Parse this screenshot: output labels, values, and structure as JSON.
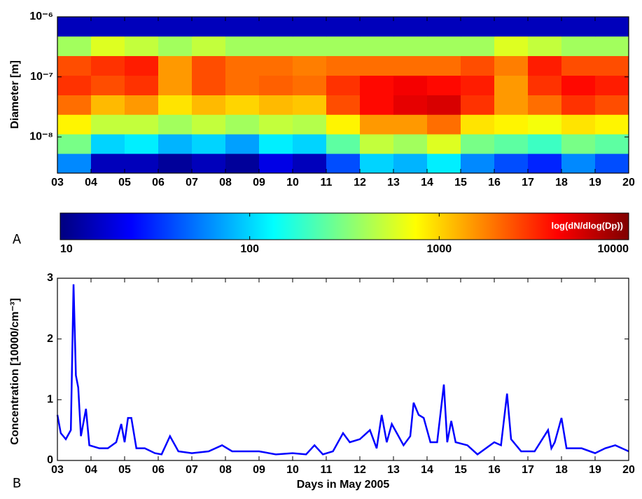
{
  "chart_data": [
    {
      "type": "heatmap",
      "panel": "A",
      "ylabel": "Diameter [m]",
      "log_y": true,
      "xlim": [
        3,
        20
      ],
      "ylim": [
        2.5e-09,
        1e-06
      ],
      "xticks": [
        {
          "value": 3,
          "label": "03"
        },
        {
          "value": 4,
          "label": "04"
        },
        {
          "value": 5,
          "label": "05"
        },
        {
          "value": 6,
          "label": "06"
        },
        {
          "value": 7,
          "label": "07"
        },
        {
          "value": 8,
          "label": "08"
        },
        {
          "value": 9,
          "label": "09"
        },
        {
          "value": 10,
          "label": "10"
        },
        {
          "value": 11,
          "label": "11"
        },
        {
          "value": 12,
          "label": "12"
        },
        {
          "value": 13,
          "label": "13"
        },
        {
          "value": 14,
          "label": "14"
        },
        {
          "value": 15,
          "label": "15"
        },
        {
          "value": 16,
          "label": "16"
        },
        {
          "value": 17,
          "label": "17"
        },
        {
          "value": 18,
          "label": "18"
        },
        {
          "value": 19,
          "label": "19"
        },
        {
          "value": 20,
          "label": "20"
        }
      ],
      "yticks": [
        {
          "value": 1e-08,
          "label": "10⁻⁸"
        },
        {
          "value": 1e-07,
          "label": "10⁻⁷"
        },
        {
          "value": 1e-06,
          "label": "10⁻⁶"
        }
      ],
      "x_bins": [
        3,
        4,
        5,
        6,
        7,
        8,
        9,
        10,
        11,
        12,
        13,
        14,
        15,
        16,
        17,
        18,
        19,
        20
      ],
      "y_bins": [
        2.5e-09,
        5.3e-09,
        1.12e-08,
        2.37e-08,
        5e-08,
        1.06e-07,
        2.25e-07,
        4.76e-07,
        1e-06
      ],
      "z": [
        [
          60,
          15,
          15,
          12,
          15,
          12,
          20,
          15,
          40,
          100,
          80,
          120,
          60,
          40,
          30,
          60,
          40
        ],
        [
          300,
          100,
          120,
          80,
          100,
          70,
          120,
          100,
          250,
          500,
          400,
          600,
          300,
          250,
          200,
          300,
          250
        ],
        [
          800,
          500,
          500,
          400,
          500,
          400,
          500,
          450,
          800,
          1500,
          1500,
          2000,
          900,
          800,
          700,
          900,
          800
        ],
        [
          2000,
          1200,
          1500,
          900,
          1200,
          1000,
          1200,
          1100,
          2500,
          4000,
          5000,
          5500,
          3000,
          1500,
          2000,
          3000,
          2500
        ],
        [
          3000,
          2500,
          3000,
          1500,
          2500,
          2000,
          2200,
          2000,
          3000,
          4000,
          4500,
          4000,
          3500,
          1500,
          3000,
          4000,
          3500
        ],
        [
          2500,
          3000,
          3500,
          1500,
          2500,
          2000,
          2000,
          1800,
          2000,
          2000,
          2000,
          2000,
          2500,
          1800,
          3500,
          2500,
          2500
        ],
        [
          400,
          600,
          500,
          400,
          500,
          400,
          400,
          400,
          400,
          400,
          400,
          400,
          400,
          600,
          500,
          400,
          400
        ],
        [
          15,
          15,
          15,
          15,
          15,
          15,
          15,
          15,
          15,
          15,
          15,
          15,
          15,
          15,
          15,
          15,
          15
        ]
      ],
      "colorbar": {
        "label": "log(dN/dlog(Dp))",
        "colormap": "jet",
        "log": true,
        "lim": [
          10,
          10000
        ],
        "ticks": [
          10,
          100,
          1000,
          10000
        ]
      }
    },
    {
      "type": "line",
      "panel": "B",
      "xlabel": "Days in May 2005",
      "ylabel": "Concentration [10000/cm⁻³]",
      "xlim": [
        3,
        20
      ],
      "ylim": [
        0,
        3
      ],
      "xticks": [
        {
          "value": 3,
          "label": "03"
        },
        {
          "value": 4,
          "label": "04"
        },
        {
          "value": 5,
          "label": "05"
        },
        {
          "value": 6,
          "label": "06"
        },
        {
          "value": 7,
          "label": "07"
        },
        {
          "value": 8,
          "label": "08"
        },
        {
          "value": 9,
          "label": "09"
        },
        {
          "value": 10,
          "label": "10"
        },
        {
          "value": 11,
          "label": "11"
        },
        {
          "value": 12,
          "label": "12"
        },
        {
          "value": 13,
          "label": "13"
        },
        {
          "value": 14,
          "label": "14"
        },
        {
          "value": 15,
          "label": "15"
        },
        {
          "value": 16,
          "label": "16"
        },
        {
          "value": 17,
          "label": "17"
        },
        {
          "value": 18,
          "label": "18"
        },
        {
          "value": 19,
          "label": "19"
        },
        {
          "value": 20,
          "label": "20"
        }
      ],
      "yticks": [
        0,
        1,
        2,
        3
      ],
      "x": [
        3.0,
        3.1,
        3.25,
        3.4,
        3.48,
        3.55,
        3.62,
        3.7,
        3.85,
        3.95,
        4.25,
        4.5,
        4.75,
        4.9,
        5.0,
        5.1,
        5.2,
        5.35,
        5.6,
        5.9,
        6.1,
        6.35,
        6.6,
        7.0,
        7.5,
        7.9,
        8.2,
        8.6,
        9.0,
        9.5,
        10.0,
        10.4,
        10.65,
        10.9,
        11.2,
        11.5,
        11.7,
        12.0,
        12.3,
        12.5,
        12.65,
        12.8,
        12.95,
        13.1,
        13.3,
        13.5,
        13.6,
        13.75,
        13.9,
        14.1,
        14.3,
        14.5,
        14.6,
        14.72,
        14.85,
        15.2,
        15.5,
        16.0,
        16.2,
        16.38,
        16.5,
        16.8,
        17.2,
        17.6,
        17.7,
        17.8,
        18.0,
        18.15,
        18.6,
        19.0,
        19.3,
        19.6,
        20.0
      ],
      "series": [
        {
          "color": "#0000ff",
          "values": [
            0.75,
            0.45,
            0.35,
            0.5,
            2.9,
            1.4,
            1.2,
            0.4,
            0.85,
            0.25,
            0.2,
            0.2,
            0.3,
            0.6,
            0.3,
            0.7,
            0.7,
            0.2,
            0.2,
            0.12,
            0.1,
            0.4,
            0.15,
            0.12,
            0.15,
            0.25,
            0.15,
            0.15,
            0.15,
            0.1,
            0.12,
            0.1,
            0.25,
            0.1,
            0.15,
            0.45,
            0.3,
            0.35,
            0.5,
            0.2,
            0.75,
            0.3,
            0.6,
            0.45,
            0.25,
            0.4,
            0.95,
            0.75,
            0.7,
            0.3,
            0.3,
            1.25,
            0.3,
            0.65,
            0.3,
            0.25,
            0.1,
            0.3,
            0.25,
            1.1,
            0.35,
            0.15,
            0.15,
            0.5,
            0.2,
            0.3,
            0.7,
            0.2,
            0.2,
            0.12,
            0.2,
            0.25,
            0.15
          ]
        }
      ]
    }
  ]
}
